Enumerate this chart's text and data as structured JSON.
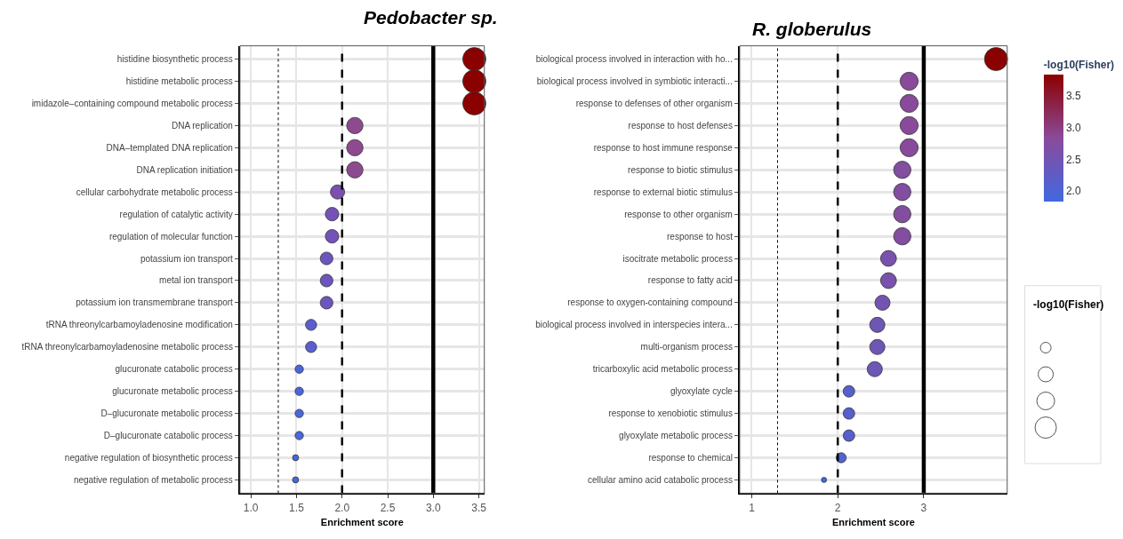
{
  "chart_data": [
    {
      "type": "bubble",
      "title": "Pedobacter sp.",
      "xlabel": "Enrichment score",
      "orientation": "horizontal",
      "categories": [
        "histidine biosynthetic process",
        "histidine metabolic process",
        "imidazole–containing compound metabolic process",
        "DNA replication",
        "DNA–templated DNA replication",
        "DNA replication initiation",
        "cellular carbohydrate metabolic process",
        "regulation of catalytic activity",
        "regulation of molecular function",
        "potassium ion transport",
        "metal ion transport",
        "potassium ion transmembrane transport",
        "tRNA threonylcarbamoyladenosine modification",
        "tRNA threonylcarbamoyladenosine metabolic process",
        "glucuronate catabolic process",
        "glucuronate metabolic process",
        "D–glucuronate metabolic process",
        "D–glucuronate catabolic process",
        "negative regulation of biosynthetic process",
        "negative regulation of metabolic process"
      ],
      "values": [
        3.45,
        3.45,
        3.45,
        2.14,
        2.14,
        2.14,
        1.95,
        1.89,
        1.89,
        1.83,
        1.83,
        1.83,
        1.66,
        1.66,
        1.53,
        1.53,
        1.53,
        1.53,
        1.49,
        1.49
      ],
      "sizes": [
        1,
        1,
        1,
        0.5,
        0.5,
        0.5,
        0.38,
        0.34,
        0.34,
        0.3,
        0.3,
        0.3,
        0.23,
        0.23,
        0.13,
        0.13,
        0.13,
        0.13,
        0.07,
        0.07
      ],
      "colors": [
        "#8b0000",
        "#8b0000",
        "#8b0000",
        "#8e4a8e",
        "#8e4a8e",
        "#8e4a8e",
        "#7c4fb0",
        "#7552b8",
        "#7552b8",
        "#6d55c0",
        "#6d55c0",
        "#6d55c0",
        "#5a5fd0",
        "#5a5fd0",
        "#4a66dc",
        "#4a66dc",
        "#4a66dc",
        "#4a66dc",
        "#4169e1",
        "#4169e1"
      ],
      "xlim": [
        0.88,
        3.56
      ],
      "xticks": [
        {
          "value": 1,
          "label": "1.0"
        },
        1.5,
        {
          "value": 2,
          "label": "2.0"
        },
        2.5,
        {
          "value": 3,
          "label": "3.0"
        },
        3.5
      ],
      "ref_lines": [
        {
          "axis": "x",
          "value": 1.3,
          "line_style": "dotted",
          "color": "#000000"
        },
        {
          "axis": "x",
          "value": 2,
          "line_style": "dashed",
          "color": "#000000"
        },
        {
          "axis": "x",
          "value": 3,
          "line_style": "solid",
          "color": "#000000"
        }
      ],
      "grid": true,
      "legend": false
    },
    {
      "type": "bubble",
      "title": "R. globerulus",
      "xlabel": "Enrichment score",
      "orientation": "horizontal",
      "categories": [
        "biological process involved in interaction with ho...",
        "biological process involved in symbiotic interacti...",
        "response to defenses of other organism",
        "response to host defenses",
        "response to host immune response",
        "response to biotic stimulus",
        "response to external biotic stimulus",
        "response to other organism",
        "response to host",
        "isocitrate metabolic process",
        "response to fatty acid",
        "response to oxygen-containing compound",
        "biological process involved in interspecies intera...",
        "multi-organism process",
        "tricarboxylic acid metabolic process",
        "glyoxylate cycle",
        "response to xenobiotic stimulus",
        "glyoxylate metabolic process",
        "response to chemical",
        "cellular amino acid catabolic process"
      ],
      "values": [
        3.84,
        2.83,
        2.83,
        2.83,
        2.83,
        2.75,
        2.75,
        2.75,
        2.75,
        2.59,
        2.59,
        2.52,
        2.46,
        2.46,
        2.43,
        2.13,
        2.13,
        2.13,
        2.04,
        1.84
      ],
      "sizes": [
        1,
        0.61,
        0.61,
        0.61,
        0.61,
        0.56,
        0.56,
        0.56,
        0.56,
        0.47,
        0.47,
        0.43,
        0.43,
        0.43,
        0.43,
        0.25,
        0.25,
        0.25,
        0.19,
        0.05
      ],
      "cvalues": [
        3.84,
        2.83,
        2.83,
        2.83,
        2.83,
        2.75,
        2.75,
        2.75,
        2.75,
        2.59,
        2.59,
        2.52,
        2.46,
        2.46,
        2.43,
        2.13,
        2.13,
        2.13,
        2.04,
        1.84
      ],
      "clabel": "-log10(Fisher)",
      "clim": [
        1.84,
        3.84
      ],
      "cticks": [
        {
          "value": 2,
          "label": "2.0"
        },
        2.5,
        {
          "value": 3,
          "label": "3.0"
        },
        3.5
      ],
      "legend_title": "-log10(Fisher)",
      "xlim": [
        0.86,
        3.97
      ],
      "xticks": [
        1,
        2,
        3
      ],
      "ref_lines": [
        {
          "axis": "x",
          "value": 1.3,
          "line_style": "dotted",
          "color": "#000000"
        },
        {
          "axis": "x",
          "value": 2,
          "line_style": "dashed",
          "color": "#000000"
        },
        {
          "axis": "x",
          "value": 3,
          "line_style": "solid",
          "color": "#000000"
        }
      ],
      "grid": true,
      "legend": false
    }
  ]
}
